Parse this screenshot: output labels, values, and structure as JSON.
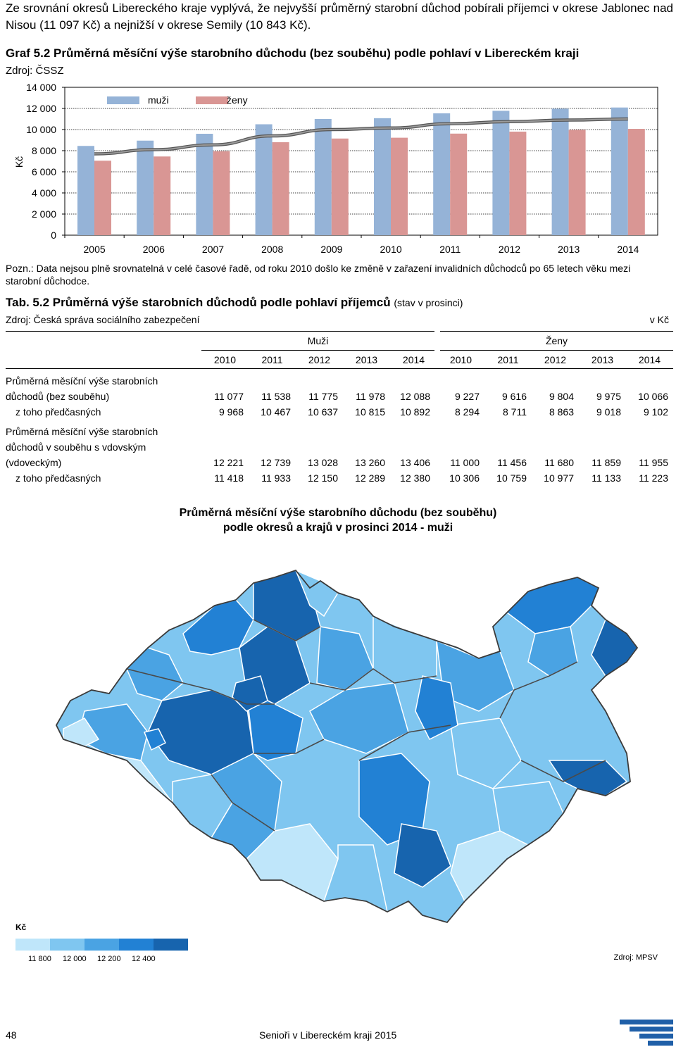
{
  "intro_text": "Ze srovnání okresů Libereckého kraje vyplývá, že nejvyšší průměrný starobní důchod pobírali příjemci v okrese Jablonec nad Nisou (11 097 Kč) a nejnižší v okrese Semily (10 843 Kč).",
  "graf": {
    "title": "Graf 5.2 Průměrná měsíční výše starobního důchodu (bez souběhu) podle pohlaví v Libereckém kraji",
    "source": "Zdroj: ČSSZ",
    "note": "Pozn.: Data nejsou plně srovnatelná v celé časové řadě, od roku 2010 došlo ke změně v zařazení invalidních důchodců po 65 letech věku mezi starobní důchodce."
  },
  "chart_data": {
    "type": "bar",
    "categories": [
      "2005",
      "2006",
      "2007",
      "2008",
      "2009",
      "2010",
      "2011",
      "2012",
      "2013",
      "2014"
    ],
    "series": [
      {
        "name": "muži",
        "values": [
          8450,
          8950,
          9600,
          10500,
          11000,
          11077,
          11538,
          11775,
          11978,
          12088
        ],
        "color": "#95B3D7"
      },
      {
        "name": "ženy",
        "values": [
          7050,
          7450,
          7950,
          8800,
          9150,
          9227,
          9616,
          9804,
          9975,
          10066
        ],
        "color": "#D99694"
      }
    ],
    "trendline": {
      "values": [
        7700,
        8100,
        8550,
        9400,
        10000,
        10150,
        10550,
        10750,
        10900,
        11000
      ],
      "color": "#7f7f7f"
    },
    "ylabel": "Kč",
    "ylim": [
      0,
      14000
    ],
    "yticks": [
      "0",
      "2 000",
      "4 000",
      "6 000",
      "8 000",
      "10 000",
      "12 000",
      "14 000"
    ],
    "legend": "top-left",
    "grid": true
  },
  "tab": {
    "title": "Tab. 5.2 Průměrná výše starobních důchodů podle pohlaví příjemců",
    "subtitle": "(stav v prosinci)",
    "source": "Zdroj: Česká správa sociálního zabezpečení",
    "unit": "v Kč",
    "group_muzi": "Muži",
    "group_zeny": "Ženy",
    "years": [
      "2010",
      "2011",
      "2012",
      "2013",
      "2014",
      "2010",
      "2011",
      "2012",
      "2013",
      "2014"
    ],
    "rows": [
      {
        "label_lines": [
          "Průměrná měsíční výše starobních",
          "důchodů (bez souběhu)"
        ],
        "indent": false,
        "values": [
          "11 077",
          "11 538",
          "11 775",
          "11 978",
          "12 088",
          "9 227",
          "9 616",
          "9 804",
          "9 975",
          "10 066"
        ]
      },
      {
        "label_lines": [
          "z toho předčasných"
        ],
        "indent": true,
        "values": [
          "9 968",
          "10 467",
          "10 637",
          "10 815",
          "10 892",
          "8 294",
          "8 711",
          "8 863",
          "9 018",
          "9 102"
        ]
      },
      {
        "label_lines": [
          "Průměrná měsíční výše starobních",
          "důchodů v souběhu s vdovským",
          "(vdoveckým)"
        ],
        "indent": false,
        "values": [
          "12 221",
          "12 739",
          "13 028",
          "13 260",
          "13 406",
          "11 000",
          "11 456",
          "11 680",
          "11 859",
          "11 955"
        ]
      },
      {
        "label_lines": [
          "z toho předčasných"
        ],
        "indent": true,
        "values": [
          "11 418",
          "11 933",
          "12 150",
          "12 289",
          "12 380",
          "10 306",
          "10 759",
          "10 977",
          "11 133",
          "11 223"
        ]
      }
    ]
  },
  "map": {
    "title_line1": "Průměrná měsíční výše starobního důchodu (bez souběhu)",
    "title_line2": "podle okresů a krajů v prosinci 2014 - muži",
    "legend_label": "Kč",
    "legend_colors": [
      "#BFE6FA",
      "#7FC6F0",
      "#4AA3E3",
      "#2281D4",
      "#1764AE"
    ],
    "legend_ticks": [
      "11 800",
      "12 000",
      "12 200",
      "12 400"
    ],
    "source": "Zdroj: MPSV"
  },
  "footer": {
    "page_number": "48",
    "publication": "Senioři v Libereckém kraji 2015"
  }
}
